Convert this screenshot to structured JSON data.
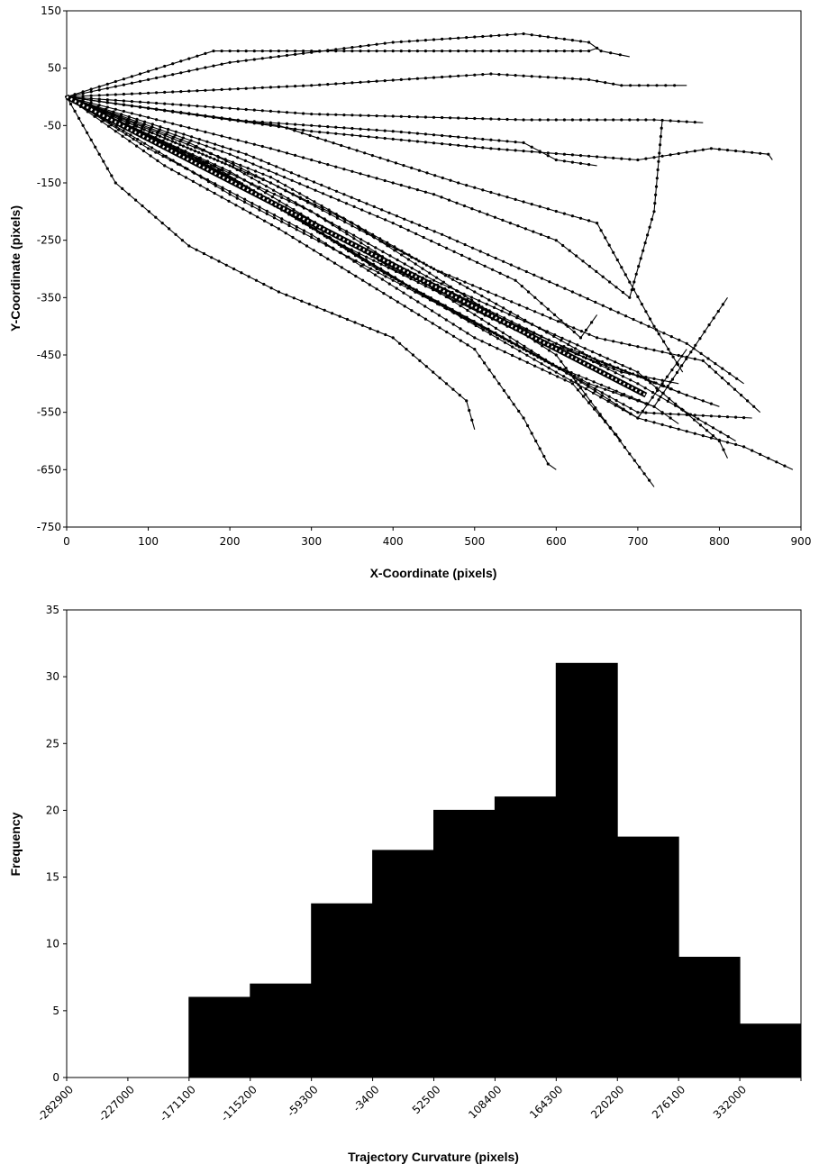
{
  "colors": {
    "ink": "#000000",
    "background": "#ffffff",
    "mean_path": "#ffffff"
  },
  "chart_data": [
    {
      "type": "line",
      "title": "",
      "xlabel": "X-Coordinate (pixels)",
      "ylabel": "Y-Coordinate (pixels)",
      "xlim": [
        0,
        900
      ],
      "ylim": [
        -750,
        150
      ],
      "x_ticks": [
        "0",
        "100",
        "200",
        "300",
        "400",
        "500",
        "600",
        "700",
        "800",
        "900"
      ],
      "y_ticks": [
        "150",
        "50",
        "-50",
        "-150",
        "-250",
        "-350",
        "-450",
        "-550",
        "-650",
        "-750"
      ],
      "grid": false,
      "legend": "none",
      "markers": true,
      "series": [
        {
          "x": [
            0,
            710
          ],
          "y": [
            0,
            -520
          ],
          "color": "#ffffff",
          "dashed": true
        },
        {
          "x": [
            0,
            180,
            460,
            640,
            650,
            640
          ],
          "y": [
            0,
            80,
            80,
            80,
            85,
            80
          ]
        },
        {
          "x": [
            0,
            200,
            400,
            560,
            640,
            655,
            690
          ],
          "y": [
            0,
            60,
            95,
            110,
            95,
            80,
            70
          ]
        },
        {
          "x": [
            0,
            300,
            520,
            640,
            680,
            745,
            760
          ],
          "y": [
            0,
            20,
            40,
            30,
            20,
            20,
            20
          ]
        },
        {
          "x": [
            0,
            300,
            520,
            700,
            790,
            860,
            865
          ],
          "y": [
            0,
            -60,
            -90,
            -110,
            -90,
            -100,
            -110
          ]
        },
        {
          "x": [
            0,
            300,
            560,
            720,
            780
          ],
          "y": [
            0,
            -30,
            -40,
            -40,
            -45
          ]
        },
        {
          "x": [
            0,
            200,
            400,
            560,
            600,
            650
          ],
          "y": [
            0,
            -40,
            -60,
            -80,
            -110,
            -120
          ]
        },
        {
          "x": [
            0,
            60,
            150,
            260,
            400,
            490,
            500
          ],
          "y": [
            0,
            -150,
            -260,
            -340,
            -420,
            -530,
            -580
          ]
        },
        {
          "x": [
            0,
            120,
            260,
            500,
            560,
            590,
            600
          ],
          "y": [
            0,
            -120,
            -230,
            -440,
            -560,
            -640,
            -650
          ]
        },
        {
          "x": [
            0,
            150,
            350,
            600,
            720
          ],
          "y": [
            0,
            -80,
            -220,
            -450,
            -680
          ]
        },
        {
          "x": [
            0,
            200,
            450,
            700,
            800,
            810
          ],
          "y": [
            0,
            -120,
            -320,
            -480,
            -600,
            -630
          ]
        },
        {
          "x": [
            0,
            250,
            450,
            650,
            780,
            850
          ],
          "y": [
            0,
            -150,
            -300,
            -420,
            -460,
            -550
          ]
        },
        {
          "x": [
            0,
            300,
            500,
            700,
            830,
            890
          ],
          "y": [
            0,
            -200,
            -380,
            -560,
            -610,
            -650
          ]
        },
        {
          "x": [
            0,
            200,
            400,
            600,
            720,
            750
          ],
          "y": [
            0,
            -170,
            -320,
            -470,
            -540,
            -570
          ]
        },
        {
          "x": [
            0,
            200,
            400,
            600,
            760
          ],
          "y": [
            0,
            -130,
            -300,
            -430,
            -520
          ]
        },
        {
          "x": [
            0,
            150,
            300,
            500,
            700,
            820
          ],
          "y": [
            0,
            -100,
            -220,
            -360,
            -500,
            -600
          ]
        },
        {
          "x": [
            0,
            100,
            300,
            500,
            620,
            680
          ],
          "y": [
            0,
            -90,
            -240,
            -420,
            -500,
            -600
          ]
        },
        {
          "x": [
            0,
            250,
            450,
            600,
            690,
            720,
            730
          ],
          "y": [
            0,
            -90,
            -170,
            -250,
            -350,
            -200,
            -40
          ]
        },
        {
          "x": [
            0,
            200,
            400,
            550,
            630,
            650
          ],
          "y": [
            0,
            -100,
            -220,
            -320,
            -420,
            -380
          ]
        },
        {
          "x": [
            0,
            250,
            500,
            650,
            760,
            800
          ],
          "y": [
            0,
            -140,
            -340,
            -460,
            -520,
            -540
          ]
        },
        {
          "x": [
            0,
            200,
            420,
            640,
            720,
            810
          ],
          "y": [
            0,
            -140,
            -330,
            -500,
            -540,
            -350
          ]
        },
        {
          "x": [
            0,
            180,
            380,
            560,
            700,
            840
          ],
          "y": [
            0,
            -120,
            -300,
            -440,
            -550,
            -560
          ]
        },
        {
          "x": [
            0,
            220,
            460,
            620,
            760,
            830
          ],
          "y": [
            0,
            -100,
            -240,
            -340,
            -430,
            -500
          ]
        },
        {
          "x": [
            0,
            160,
            340,
            540,
            680,
            750
          ],
          "y": [
            0,
            -110,
            -260,
            -400,
            -480,
            -500
          ]
        },
        {
          "x": [
            0,
            260,
            480,
            650,
            720,
            755
          ],
          "y": [
            0,
            -50,
            -150,
            -220,
            -400,
            -480
          ]
        },
        {
          "x": [
            0,
            220,
            430,
            600,
            700,
            760
          ],
          "y": [
            0,
            -160,
            -340,
            -480,
            -560,
            -440
          ]
        }
      ]
    },
    {
      "type": "bar",
      "title": "",
      "xlabel": "Trajectory Curvature (pixels)",
      "ylabel": "Frequency",
      "categories": [
        "-282900",
        "-227000",
        "-171100",
        "-115200",
        "-59300",
        "-3400",
        "52500",
        "108400",
        "164300",
        "220200",
        "276100",
        "332000"
      ],
      "values": [
        0,
        0,
        6,
        7,
        13,
        17,
        20,
        21,
        31,
        18,
        9,
        4
      ],
      "ylim": [
        0,
        35
      ],
      "y_ticks": [
        "0",
        "5",
        "10",
        "15",
        "20",
        "25",
        "30",
        "35"
      ],
      "grid": false,
      "legend": "none",
      "bar_color": "#000000"
    }
  ]
}
